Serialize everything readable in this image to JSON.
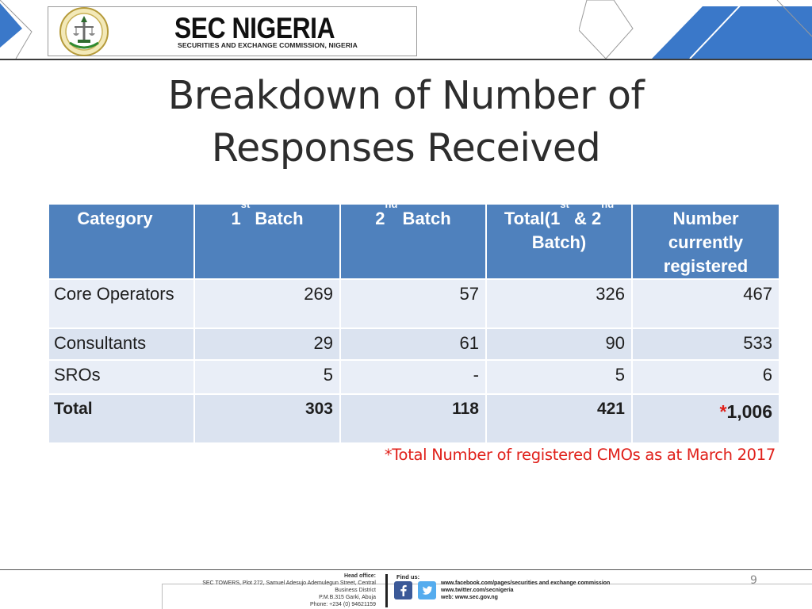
{
  "header": {
    "brand_title": "SEC NIGERIA",
    "brand_subtitle": "SECURITIES AND EXCHANGE COMMISSION, NIGERIA"
  },
  "title_line1": "Breakdown of Number of",
  "title_line2": "Responses Received",
  "table": {
    "headers": {
      "category": "Category",
      "batch1": {
        "pre": "1",
        "sup": "st",
        "post": " Batch"
      },
      "batch2": {
        "pre": "2",
        "sup": "nd",
        "post": " Batch"
      },
      "total": {
        "pre1": "Total(1",
        "sup1": "st",
        "mid": " & 2",
        "sup2": "nd",
        "line2": "Batch)"
      },
      "registered": "Number currently registered"
    },
    "rows": [
      {
        "category": "Core Operators",
        "batch1": "269",
        "batch2": "57",
        "total": "326",
        "registered": "467"
      },
      {
        "category": "Consultants",
        "batch1": "29",
        "batch2": "61",
        "total": "90",
        "registered": "533"
      },
      {
        "category": "SROs",
        "batch1": "5",
        "batch2": "-",
        "total": "5",
        "registered": "6"
      },
      {
        "category": "Total",
        "batch1": "303",
        "batch2": "118",
        "total": "421",
        "registered_star": "*",
        "registered": "1,006"
      }
    ]
  },
  "footnote": "*Total Number of registered CMOs as at March  2017",
  "footer": {
    "head_office_title": "Head office:",
    "address_lines": [
      "SEC TOWERS, Plot 272, Samuel Adesujo Ademulegun Street, Central",
      "Business District",
      "P.M.B.315 Garki, Abuja",
      "Phone: +234 (0) 94621159"
    ],
    "find_us": "Find us:",
    "links": [
      "www.facebook.com/pages/securities and exchange commission",
      "www.twitter.com/secnigeria",
      "web: www.sec.gov.ng"
    ],
    "page_number": "9"
  },
  "colors": {
    "header_fill": "#4f81bd",
    "row_light": "#e9eef7",
    "row_alt": "#dbe3f0",
    "footnote_red": "#e0201a",
    "deco_blue": "#3a78c9"
  },
  "icons": [
    "sec-seal-icon",
    "facebook-icon",
    "twitter-icon"
  ]
}
